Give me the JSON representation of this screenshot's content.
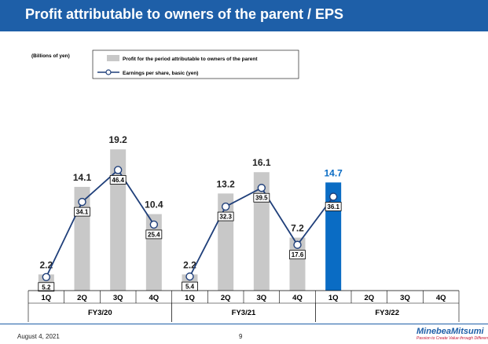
{
  "page": {
    "title": "Profit attributable to owners of the parent / EPS",
    "date": "August 4, 2021",
    "page_number": "9",
    "logo_name": "MinebeaMitsumi",
    "logo_tagline": "Passion to Create Value through Difference"
  },
  "colors": {
    "header": "#1e5fa8",
    "bar_past": "#c8c8c8",
    "bar_current": "#0a6cc4",
    "line": "#1f3f7a"
  },
  "chart_data": {
    "type": "bar",
    "unit_label": "(Billions of yen)",
    "categories": [
      "1Q",
      "2Q",
      "3Q",
      "4Q",
      "1Q",
      "2Q",
      "3Q",
      "4Q",
      "1Q",
      "2Q",
      "3Q",
      "4Q"
    ],
    "groups": [
      {
        "label": "FY3/20",
        "start": 0,
        "end": 3
      },
      {
        "label": "FY3/21",
        "start": 4,
        "end": 7
      },
      {
        "label": "FY3/22",
        "start": 8,
        "end": 11
      }
    ],
    "series": [
      {
        "name": "Profit for the period attributable to owners of the parent",
        "kind": "bar",
        "values": [
          2.2,
          14.1,
          19.2,
          10.4,
          2.2,
          13.2,
          16.1,
          7.2,
          14.7,
          null,
          null,
          null
        ],
        "labels": [
          "2.2",
          "14.1",
          "19.2",
          "10.4",
          "2.2",
          "13.2",
          "16.1",
          "7.2",
          "14.7",
          "",
          "",
          ""
        ],
        "highlight_index": 8
      },
      {
        "name": "Earnings per share, basic (yen)",
        "kind": "line",
        "values": [
          5.2,
          34.1,
          46.4,
          25.4,
          5.4,
          32.3,
          39.5,
          17.6,
          36.1,
          null,
          null,
          null
        ],
        "labels": [
          "5.2",
          "34.1",
          "46.4",
          "25.4",
          "5.4",
          "32.3",
          "39.5",
          "17.6",
          "36.1",
          "",
          "",
          ""
        ]
      }
    ],
    "ylim_bar": [
      0,
      20.5
    ],
    "ylim_line": [
      0,
      58
    ],
    "legend_position": "top"
  }
}
